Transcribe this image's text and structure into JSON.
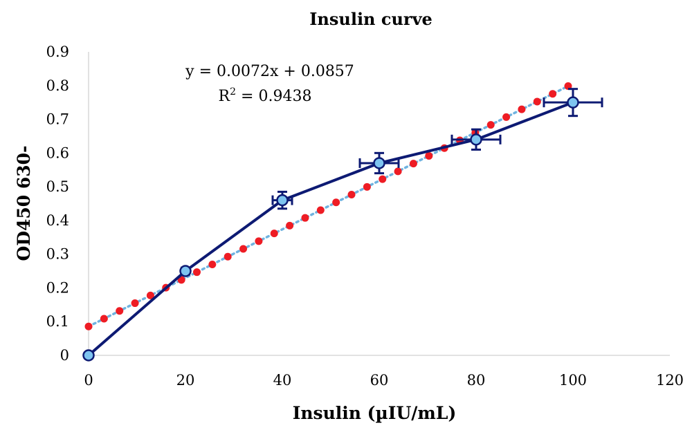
{
  "chart_data": {
    "type": "scatter",
    "title": "Insulin curve",
    "xlabel": "Insulin (µIU/mL)",
    "ylabel": "OD450 630-",
    "xlim": [
      0,
      120
    ],
    "ylim": [
      0,
      0.9
    ],
    "x_ticks": [
      "0",
      "20",
      "40",
      "60",
      "80",
      "100",
      "120"
    ],
    "y_ticks": [
      "0",
      "0.1",
      "0.2",
      "0.3",
      "0.4",
      "0.5",
      "0.6",
      "0.7",
      "0.8",
      "0.9"
    ],
    "grid": false,
    "legend": "none",
    "series": [
      {
        "kind": "line-with-markers",
        "color": "#0d1a73",
        "marker_fill": "#7ec4f0",
        "x": [
          0,
          20,
          40,
          60,
          80,
          100
        ],
        "y": [
          0,
          0.25,
          0.46,
          0.57,
          0.64,
          0.75
        ],
        "x_error": [
          0,
          0,
          2,
          4,
          5,
          6
        ],
        "y_error": [
          0,
          0.01,
          0.025,
          0.03,
          0.03,
          0.04
        ]
      },
      {
        "kind": "trendline",
        "style": "dotted",
        "colors": [
          "#ee1c24",
          "#6fb3e0"
        ],
        "slope": 0.0072,
        "intercept": 0.0857,
        "x_range": [
          0,
          99
        ]
      }
    ],
    "annotations": {
      "equation": "y = 0.0072x + 0.0857",
      "r2_prefix": "R",
      "r2_sup": "2",
      "r2_suffix": " = 0.9438"
    }
  }
}
